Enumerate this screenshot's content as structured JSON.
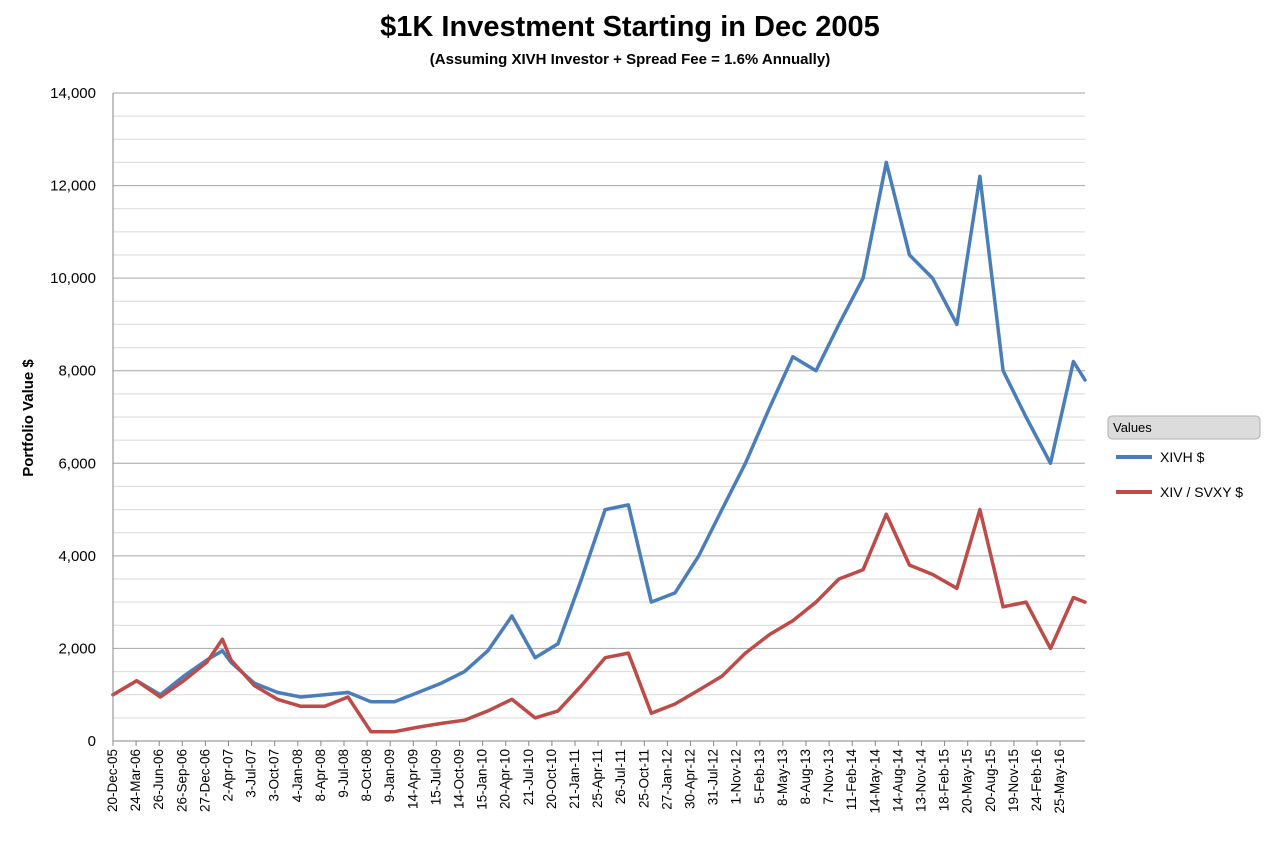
{
  "chart_data": {
    "type": "line",
    "title": "$1K Investment Starting in Dec 2005",
    "subtitle": "(Assuming XIVH Investor + Spread Fee = 1.6% Annually)",
    "xlabel": "",
    "ylabel": "Portfolio Value $",
    "ylim": [
      0,
      14000
    ],
    "y_ticks": [
      "0",
      "2,000",
      "4,000",
      "6,000",
      "8,000",
      "10,000",
      "12,000",
      "14,000"
    ],
    "y_tick_values": [
      0,
      2000,
      4000,
      6000,
      8000,
      10000,
      12000,
      14000
    ],
    "grid": true,
    "legend_title": "Values",
    "legend_position": "right",
    "x_tick_labels": [
      "20-Dec-05",
      "24-Mar-06",
      "26-Jun-06",
      "26-Sep-06",
      "27-Dec-06",
      "2-Apr-07",
      "3-Jul-07",
      "3-Oct-07",
      "4-Jan-08",
      "8-Apr-08",
      "9-Jul-08",
      "8-Oct-08",
      "9-Jan-09",
      "14-Apr-09",
      "15-Jul-09",
      "14-Oct-09",
      "15-Jan-10",
      "20-Apr-10",
      "21-Jul-10",
      "20-Oct-10",
      "21-Jan-11",
      "25-Apr-11",
      "26-Jul-11",
      "25-Oct-11",
      "27-Jan-12",
      "30-Apr-12",
      "31-Jul-12",
      "1-Nov-12",
      "5-Feb-13",
      "8-May-13",
      "8-Aug-13",
      "7-Nov-13",
      "11-Feb-14",
      "14-May-14",
      "14-Aug-14",
      "13-Nov-14",
      "18-Feb-15",
      "20-May-15",
      "20-Aug-15",
      "19-Nov-15",
      "24-Feb-16",
      "25-May-16"
    ],
    "x": [
      "2005-12-20",
      "2006-03-24",
      "2006-06-26",
      "2006-09-26",
      "2006-12-27",
      "2007-02-27",
      "2007-04-02",
      "2007-07-03",
      "2007-10-03",
      "2008-01-04",
      "2008-04-08",
      "2008-07-09",
      "2008-10-08",
      "2009-01-09",
      "2009-04-14",
      "2009-07-15",
      "2009-10-14",
      "2010-01-15",
      "2010-04-20",
      "2010-07-21",
      "2010-10-20",
      "2011-01-21",
      "2011-04-25",
      "2011-07-26",
      "2011-10-25",
      "2012-01-27",
      "2012-04-30",
      "2012-07-31",
      "2012-11-01",
      "2013-02-05",
      "2013-05-08",
      "2013-08-08",
      "2013-11-07",
      "2014-02-11",
      "2014-05-14",
      "2014-08-14",
      "2014-11-13",
      "2015-02-18",
      "2015-05-20",
      "2015-08-20",
      "2015-11-19",
      "2016-02-24",
      "2016-05-25",
      "2016-07-10"
    ],
    "series": [
      {
        "name": "XIVH $",
        "color": "#4a7ebb",
        "values": [
          1000,
          1300,
          1000,
          1400,
          1750,
          1950,
          1700,
          1250,
          1050,
          950,
          1000,
          1050,
          850,
          850,
          1050,
          1250,
          1500,
          1950,
          2700,
          1800,
          2100,
          3500,
          5000,
          5100,
          3000,
          3200,
          4000,
          5000,
          6000,
          7200,
          8300,
          8000,
          9000,
          10000,
          12500,
          10500,
          10000,
          9000,
          12200,
          8000,
          7000,
          6000,
          8200,
          7800
        ]
      },
      {
        "name": "XIV / SVXY $",
        "color": "#be4b48",
        "values": [
          1000,
          1300,
          950,
          1300,
          1700,
          2200,
          1750,
          1200,
          900,
          750,
          750,
          950,
          200,
          200,
          300,
          380,
          450,
          650,
          900,
          500,
          650,
          1200,
          1800,
          1900,
          600,
          800,
          1100,
          1400,
          1900,
          2300,
          2600,
          3000,
          3500,
          3700,
          4900,
          3800,
          3600,
          3300,
          5000,
          2900,
          3000,
          2000,
          3100,
          3000
        ]
      }
    ]
  }
}
